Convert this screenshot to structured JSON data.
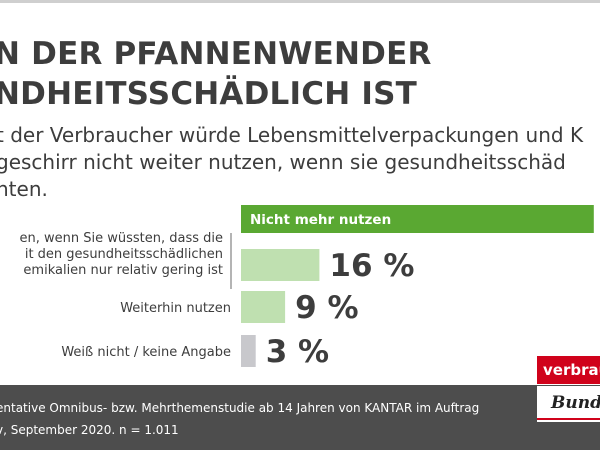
{
  "header": {
    "title_lines": [
      "N DER PFANNENWENDER",
      "NDHEITSSCHÄDLICH IST"
    ],
    "subtitle_lines": [
      "t der Verbraucher würde Lebensmittelverpackungen und K",
      "geschirr nicht weiter nutzen, wenn sie gesundheitsschäd",
      "nten."
    ]
  },
  "chart_data": {
    "type": "bar",
    "orientation": "horizontal",
    "categories": [
      "Nicht mehr nutzen",
      "en, wenn Sie wüssten, dass die\nit den gesundheitsschädlichen\nemikalien nur relativ gering ist",
      "Weiterhin nutzen",
      "Weiß nicht / keine Angabe"
    ],
    "value_labels": [
      "",
      "16 %",
      "9 %",
      "3 %"
    ],
    "values": [
      72,
      16,
      9,
      3
    ],
    "value_unit": "%",
    "colors": [
      "#5aa832",
      "#bfe0b0",
      "#bfe0b0",
      "#c8c8cc"
    ],
    "xlim": [
      0,
      100
    ]
  },
  "footer": {
    "line1": "entative Omnibus- bzw. Mehrthemenstudie ab 14 Jahren von KANTAR im Auftrag",
    "line2": "v, September 2020. n = 1.011"
  },
  "logo": {
    "top_text": "verbrauch",
    "bottom_text": "Bund",
    "red": "#d0021b"
  }
}
